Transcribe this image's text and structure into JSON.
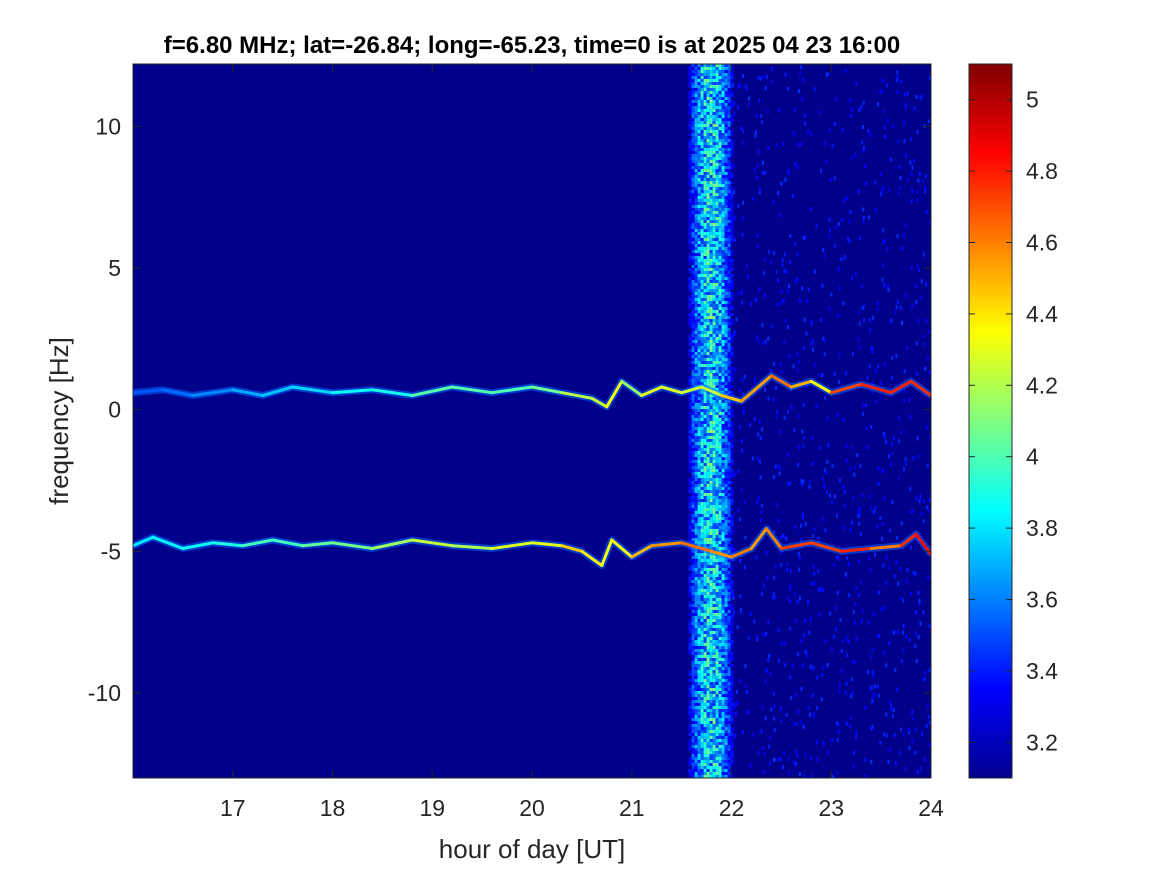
{
  "chart_data": {
    "type": "heatmap",
    "title": "f=6.80 MHz;  lat=-26.84; long=-65.23, time=0 is at 2025 04 23 16:00",
    "xlabel": "hour of day [UT]",
    "ylabel": "frequency [Hz]",
    "xlim": [
      16,
      24
    ],
    "ylim": [
      -13,
      12.2
    ],
    "x_ticks": [
      17,
      18,
      19,
      20,
      21,
      22,
      23,
      24
    ],
    "y_ticks": [
      10,
      5,
      0,
      -5,
      -10
    ],
    "colorbar": {
      "range": [
        3.1,
        5.1
      ],
      "ticks": [
        5,
        4.8,
        4.6,
        4.4,
        4.2,
        4,
        3.8,
        3.6,
        3.4,
        3.2
      ],
      "colormap": "jet"
    },
    "background_level": 3.12,
    "broadband_band": {
      "x_start": 21.5,
      "x_end": 22.0,
      "peak_x": 21.78,
      "level": 3.9
    },
    "traces": [
      {
        "name_hint": "upper trace",
        "points": [
          [
            16.0,
            0.6
          ],
          [
            16.3,
            0.7
          ],
          [
            16.6,
            0.5
          ],
          [
            17.0,
            0.7
          ],
          [
            17.3,
            0.5
          ],
          [
            17.6,
            0.8
          ],
          [
            18.0,
            0.6
          ],
          [
            18.4,
            0.7
          ],
          [
            18.8,
            0.5
          ],
          [
            19.2,
            0.8
          ],
          [
            19.6,
            0.6
          ],
          [
            20.0,
            0.8
          ],
          [
            20.3,
            0.6
          ],
          [
            20.6,
            0.4
          ],
          [
            20.75,
            0.1
          ],
          [
            20.9,
            1.0
          ],
          [
            21.1,
            0.5
          ],
          [
            21.3,
            0.8
          ],
          [
            21.5,
            0.6
          ],
          [
            21.7,
            0.8
          ],
          [
            21.9,
            0.5
          ],
          [
            22.1,
            0.3
          ],
          [
            22.4,
            1.2
          ],
          [
            22.6,
            0.8
          ],
          [
            22.8,
            1.0
          ],
          [
            23.0,
            0.6
          ],
          [
            23.3,
            0.9
          ],
          [
            23.6,
            0.6
          ],
          [
            23.8,
            1.0
          ],
          [
            24.0,
            0.5
          ]
        ],
        "level_range": [
          3.5,
          4.9
        ]
      },
      {
        "name_hint": "lower trace",
        "points": [
          [
            16.0,
            -4.8
          ],
          [
            16.2,
            -4.5
          ],
          [
            16.5,
            -4.9
          ],
          [
            16.8,
            -4.7
          ],
          [
            17.1,
            -4.8
          ],
          [
            17.4,
            -4.6
          ],
          [
            17.7,
            -4.8
          ],
          [
            18.0,
            -4.7
          ],
          [
            18.4,
            -4.9
          ],
          [
            18.8,
            -4.6
          ],
          [
            19.2,
            -4.8
          ],
          [
            19.6,
            -4.9
          ],
          [
            20.0,
            -4.7
          ],
          [
            20.3,
            -4.8
          ],
          [
            20.5,
            -5.0
          ],
          [
            20.7,
            -5.5
          ],
          [
            20.8,
            -4.6
          ],
          [
            21.0,
            -5.2
          ],
          [
            21.2,
            -4.8
          ],
          [
            21.5,
            -4.7
          ],
          [
            21.8,
            -5.0
          ],
          [
            22.0,
            -5.2
          ],
          [
            22.2,
            -4.9
          ],
          [
            22.35,
            -4.2
          ],
          [
            22.5,
            -4.9
          ],
          [
            22.8,
            -4.7
          ],
          [
            23.1,
            -5.0
          ],
          [
            23.4,
            -4.9
          ],
          [
            23.7,
            -4.8
          ],
          [
            23.85,
            -4.4
          ],
          [
            24.0,
            -5.1
          ]
        ],
        "level_range": [
          3.8,
          5.0
        ]
      }
    ]
  }
}
